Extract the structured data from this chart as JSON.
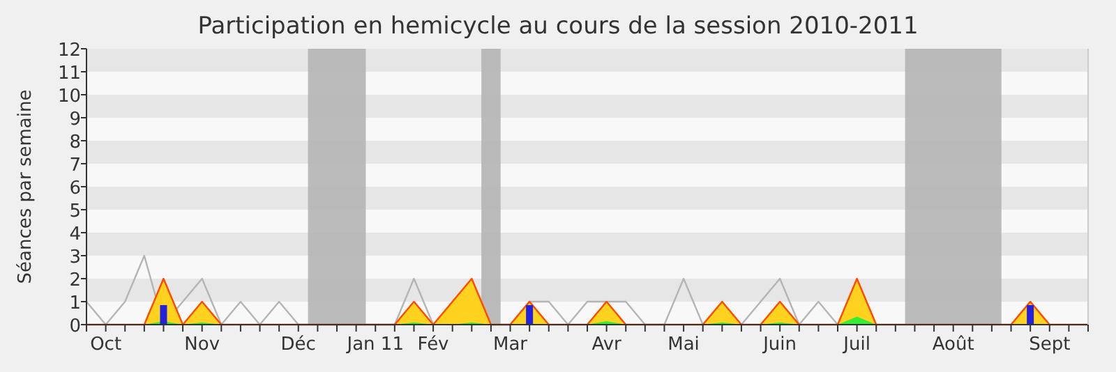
{
  "chart_data": {
    "type": "area",
    "title": "Participation en hemicycle au cours de la session 2010-2011",
    "ylabel": "Séances par semaine",
    "categories": [
      null,
      "Oct",
      null,
      null,
      null,
      null,
      "Nov",
      null,
      null,
      null,
      null,
      "Déc",
      null,
      null,
      null,
      "Jan 11",
      null,
      null,
      "Fév",
      null,
      null,
      null,
      "Mar",
      null,
      null,
      null,
      null,
      "Avr",
      null,
      null,
      null,
      "Mai",
      null,
      null,
      null,
      null,
      "Juin",
      null,
      null,
      null,
      "Juil",
      null,
      null,
      null,
      null,
      "Août",
      null,
      null,
      null,
      null,
      "Sept",
      null,
      null
    ],
    "ylim": [
      0,
      12
    ],
    "yticks": [
      0,
      1,
      2,
      3,
      4,
      5,
      6,
      7,
      8,
      9,
      10,
      11,
      12
    ],
    "series": [
      {
        "type": "line",
        "color": "#b4b4b4",
        "values": [
          1,
          0,
          1,
          3,
          0,
          1,
          2,
          0,
          1,
          0,
          1,
          0,
          0,
          0,
          0,
          0,
          0,
          2,
          0,
          null,
          null,
          0,
          0,
          1,
          1,
          0,
          1,
          1,
          1,
          0,
          0,
          2,
          0,
          null,
          0,
          1,
          2,
          0,
          1,
          0,
          null,
          null,
          null,
          null,
          null,
          null,
          null,
          null,
          null,
          null,
          null,
          null,
          null
        ]
      },
      {
        "color": "#ffd21f",
        "values": [
          0,
          0,
          0,
          0,
          2,
          0,
          1,
          0,
          0,
          0,
          0,
          0,
          0,
          0,
          0,
          0,
          0,
          1,
          0,
          1,
          2,
          0,
          0,
          1,
          0,
          0,
          0,
          1,
          0,
          0,
          0,
          0,
          0,
          1,
          0,
          0,
          1,
          0,
          0,
          0,
          2,
          0,
          0,
          0,
          0,
          0,
          0,
          0,
          0,
          1,
          0,
          0,
          0
        ]
      },
      {
        "type": "area",
        "color": "#33ee33",
        "values": [
          0,
          0,
          0,
          0,
          0.15,
          0,
          0.1,
          0,
          0,
          0,
          0,
          0,
          0,
          0,
          0,
          0,
          0,
          0.1,
          0,
          0,
          0.1,
          0,
          0,
          0,
          0,
          0,
          0,
          0.15,
          0,
          0,
          0,
          0,
          0,
          0.1,
          0,
          0,
          0.1,
          0,
          0,
          0,
          0.35,
          0,
          0,
          0,
          0,
          0,
          0,
          0,
          0,
          0,
          0,
          0,
          0
        ]
      },
      {
        "type": "bar",
        "color": "#2222dd",
        "values": [
          null,
          null,
          null,
          null,
          0.85,
          null,
          null,
          null,
          null,
          null,
          null,
          null,
          null,
          null,
          null,
          null,
          null,
          null,
          null,
          null,
          null,
          null,
          null,
          0.85,
          null,
          null,
          null,
          null,
          null,
          null,
          null,
          null,
          null,
          null,
          null,
          null,
          null,
          null,
          null,
          null,
          null,
          null,
          null,
          null,
          null,
          null,
          null,
          null,
          null,
          0.85,
          null,
          null,
          null
        ]
      }
    ]
  }
}
